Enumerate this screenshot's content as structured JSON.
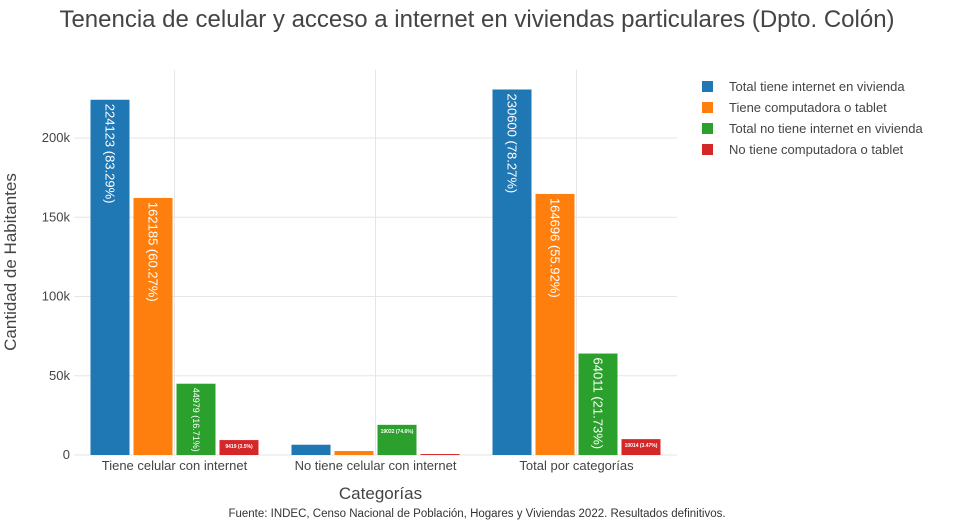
{
  "chart_data": {
    "type": "bar",
    "title": "Tenencia de celular y acceso a internet en viviendas particulares (Dpto. Colón)",
    "xlabel": "Categorías",
    "ylabel": "Cantidad de Habitantes",
    "source": "Fuente: INDEC, Censo Nacional de Población, Hogares y Viviendas 2022. Resultados definitivos.",
    "categories": [
      "Tiene celular con internet",
      "No tiene celular con internet",
      "Total por categorías"
    ],
    "ylim": [
      0,
      240000
    ],
    "y_ticks": [
      0,
      50000,
      100000,
      150000,
      200000
    ],
    "y_tick_labels": [
      "0",
      "50k",
      "100k",
      "150k",
      "200k"
    ],
    "grid": true,
    "legend_position": "top-right",
    "series": [
      {
        "name": "Total tiene internet en vivienda",
        "color": "#1f77b4",
        "values": [
          224123,
          6477,
          230600
        ],
        "labels": [
          "224123 (83.29%)",
          "",
          "230600 (78.27%)"
        ]
      },
      {
        "name": "Tiene computadora o tablet",
        "color": "#ff7f0e",
        "values": [
          162185,
          2511,
          164696
        ],
        "labels": [
          "162185 (60.27%)",
          "",
          "164696 (55.92%)"
        ]
      },
      {
        "name": "Total no tiene internet en vivienda",
        "color": "#2ca02c",
        "values": [
          44979,
          19032,
          64011
        ],
        "labels": [
          "44979 (16.71%)",
          "19032 (74.6%)",
          "64011 (21.73%)"
        ]
      },
      {
        "name": "No tiene computadora o tablet",
        "color": "#d62728",
        "values": [
          9419,
          595,
          10014
        ],
        "labels": [
          "9419 (3.5%)",
          "",
          "10014 (3.47%)"
        ]
      }
    ]
  }
}
